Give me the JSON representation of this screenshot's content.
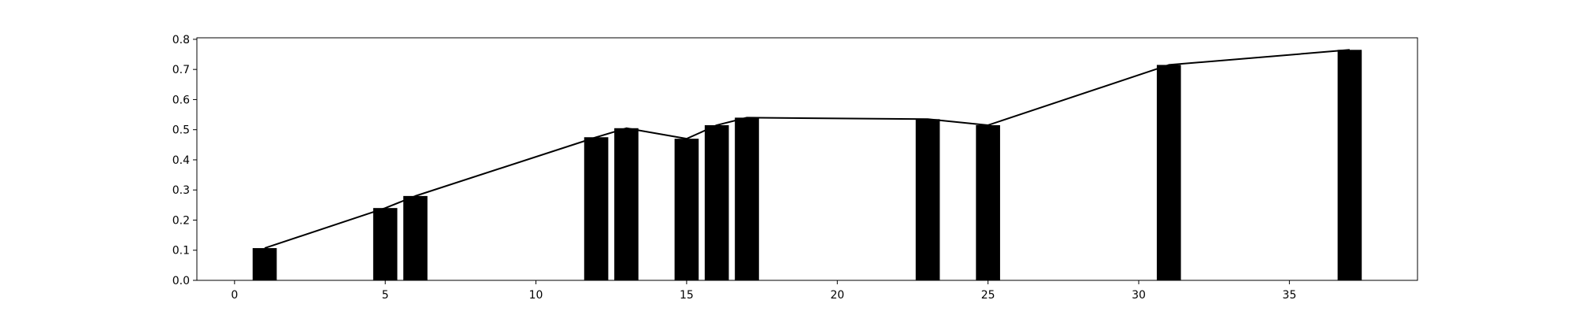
{
  "chart_data": {
    "type": "bar",
    "title": "",
    "xlabel": "",
    "ylabel": "",
    "xlim": [
      -1.25,
      39.25
    ],
    "ylim": [
      0,
      0.805
    ],
    "grid": false,
    "x_ticks": [
      0,
      5,
      10,
      15,
      20,
      25,
      30,
      35
    ],
    "y_ticks": [
      0.0,
      0.1,
      0.2,
      0.3,
      0.4,
      0.5,
      0.6,
      0.7,
      0.8
    ],
    "x_tick_labels": [
      "0",
      "5",
      "10",
      "15",
      "20",
      "25",
      "30",
      "35"
    ],
    "y_tick_labels": [
      "0.0",
      "0.1",
      "0.2",
      "0.3",
      "0.4",
      "0.5",
      "0.6",
      "0.7",
      "0.8"
    ],
    "bar_color": "#000000",
    "line_color": "#000000",
    "bar_width": 0.8,
    "series": [
      {
        "type": "bar",
        "x": [
          1,
          5,
          6,
          12,
          13,
          15,
          16,
          17,
          23,
          25,
          31,
          37
        ],
        "values": [
          0.107,
          0.24,
          0.28,
          0.475,
          0.505,
          0.47,
          0.515,
          0.54,
          0.535,
          0.515,
          0.715,
          0.765
        ]
      },
      {
        "type": "line",
        "x": [
          1,
          5,
          6,
          12,
          13,
          15,
          16,
          17,
          23,
          25,
          31,
          37
        ],
        "values": [
          0.107,
          0.24,
          0.28,
          0.475,
          0.505,
          0.47,
          0.515,
          0.54,
          0.535,
          0.515,
          0.715,
          0.765
        ]
      }
    ]
  }
}
